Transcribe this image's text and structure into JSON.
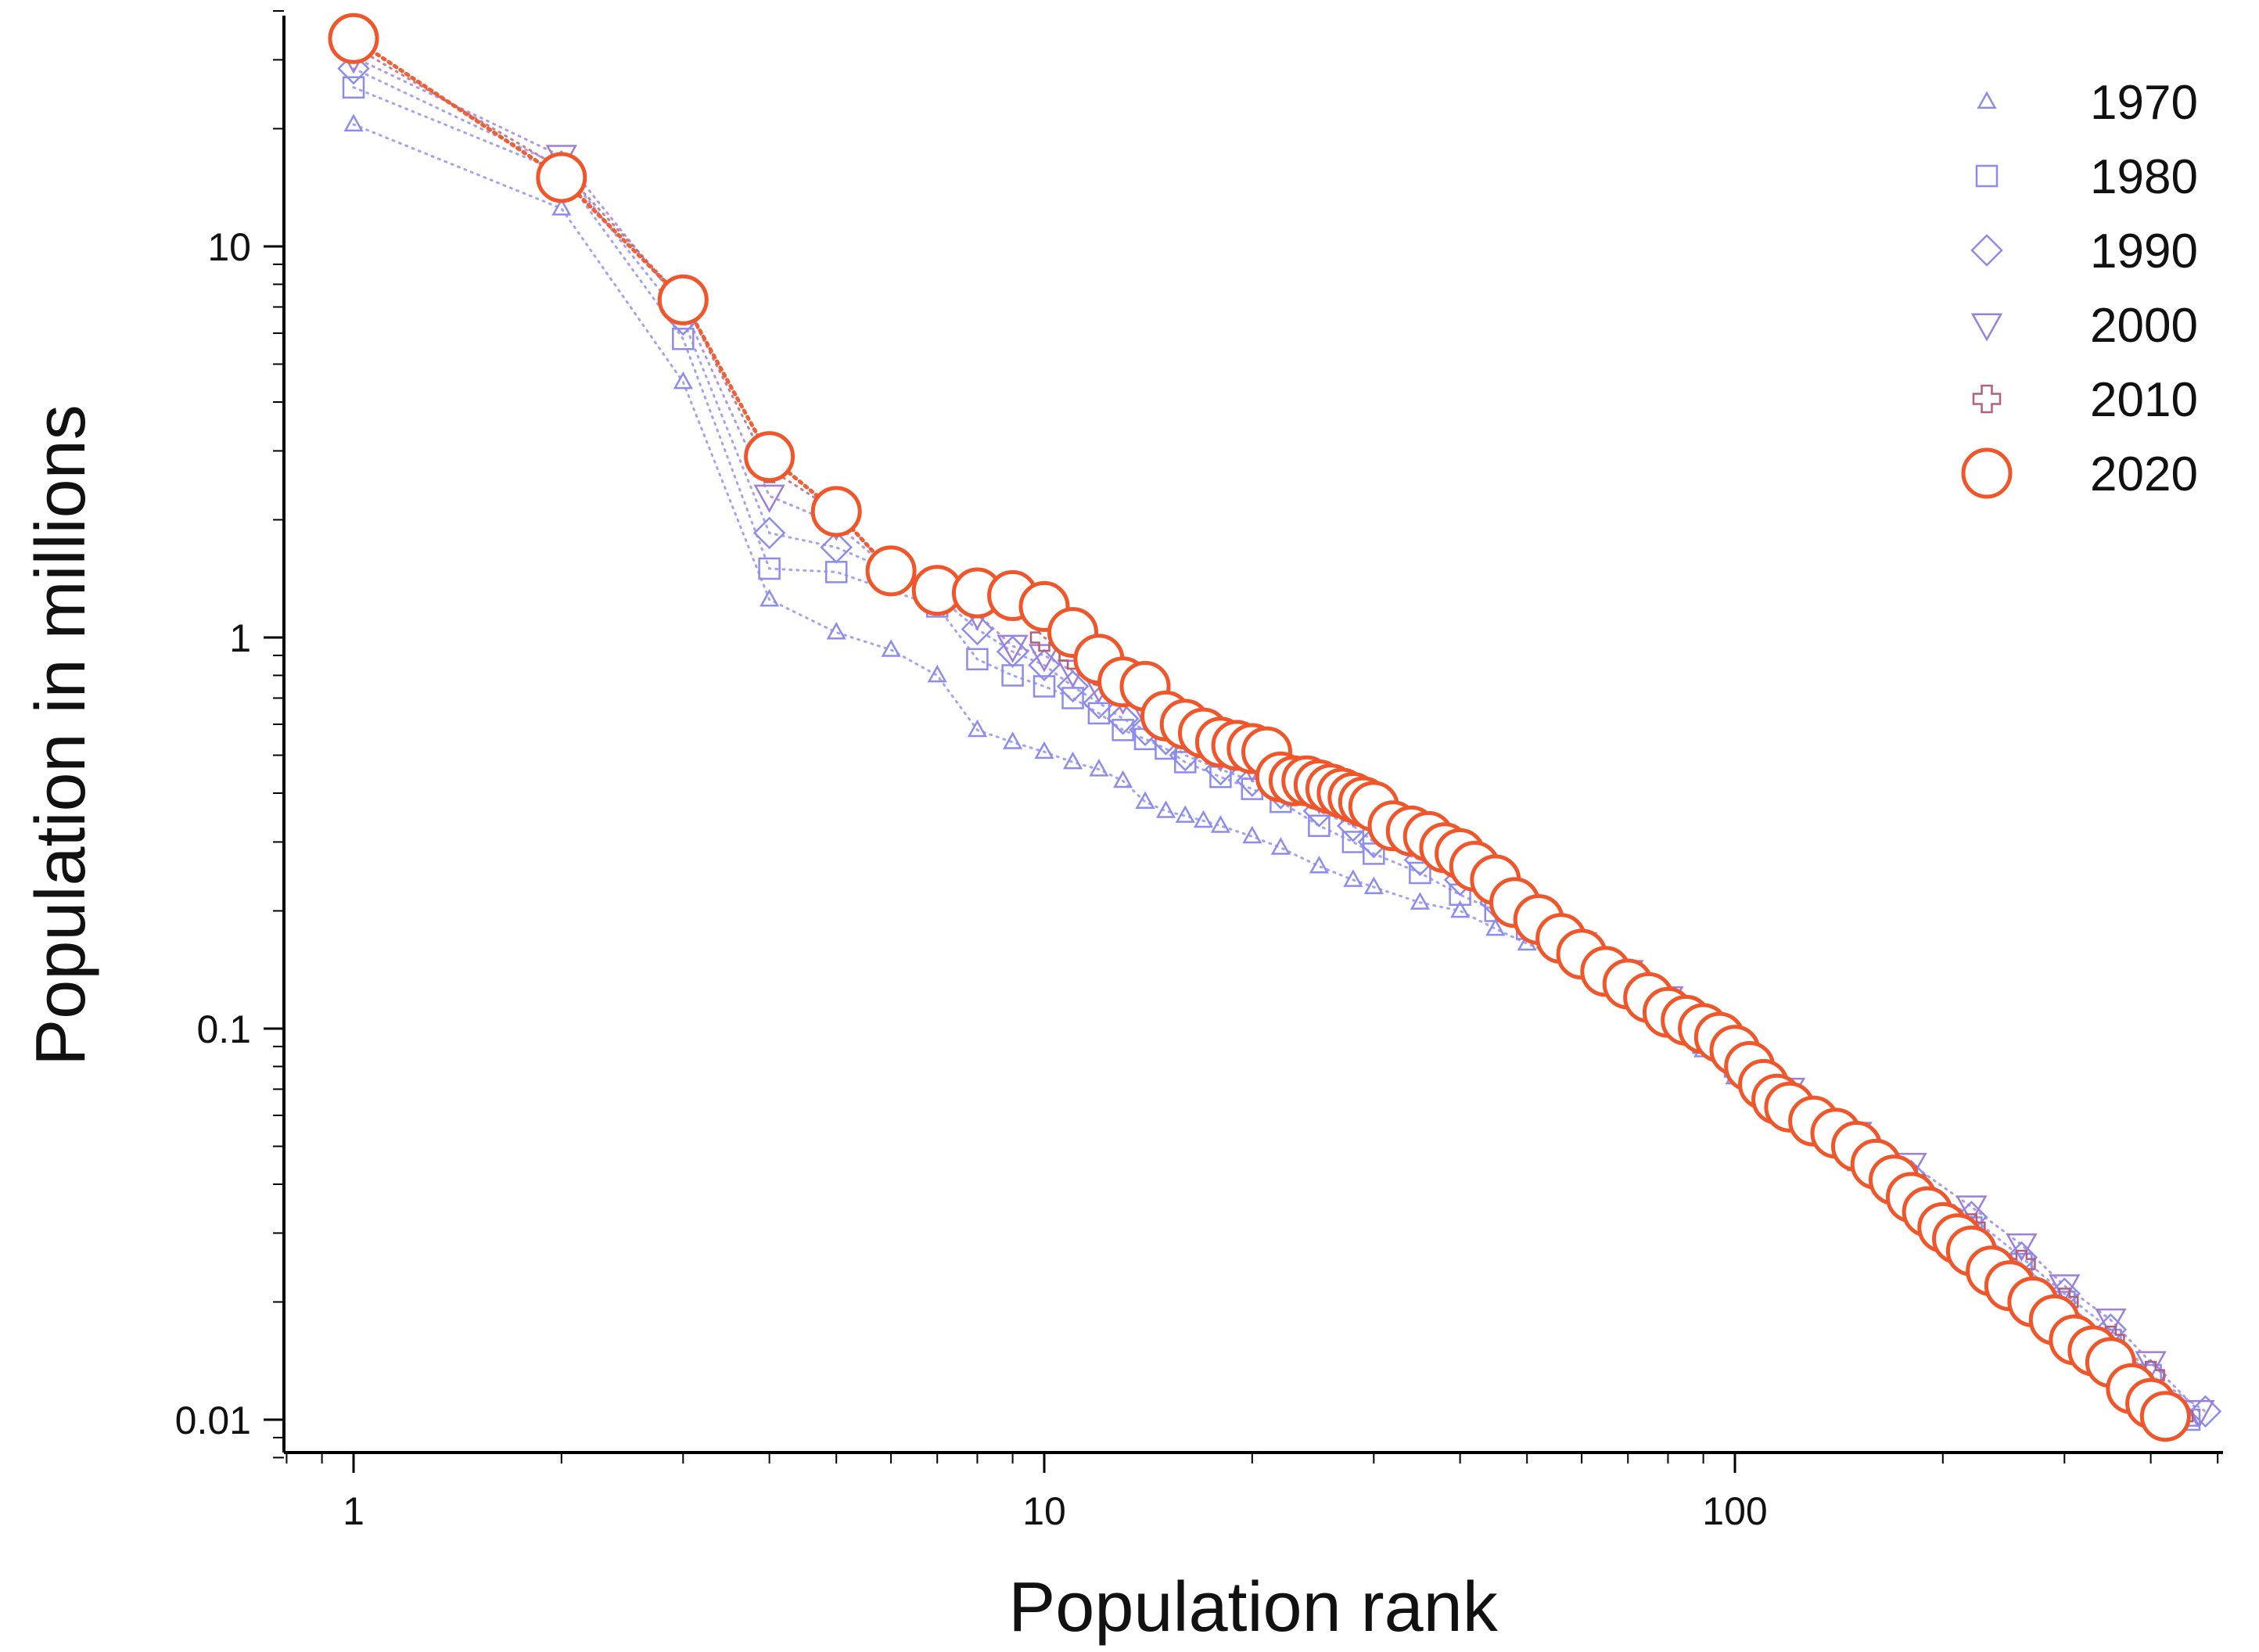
{
  "chart_data": {
    "type": "scatter",
    "title": "",
    "xlabel": "Population rank",
    "ylabel": "Population in millions",
    "x_scale": "log",
    "y_scale": "log",
    "xlim": [
      0.75,
      500
    ],
    "ylim": [
      0.008,
      45
    ],
    "x_ticks": [
      1,
      10,
      100
    ],
    "x_tick_labels": [
      "1",
      "10",
      "100"
    ],
    "y_ticks": [
      0.01,
      0.1,
      1,
      10
    ],
    "y_tick_labels": [
      "0.01",
      "0.1",
      "1",
      "10"
    ],
    "grid": false,
    "legend_position": "top-right",
    "series": [
      {
        "name": "1970",
        "marker": "triangle-up",
        "color": "#8c8cef",
        "points": [
          [
            1,
            20.5
          ],
          [
            2,
            12.5
          ],
          [
            3,
            4.5
          ],
          [
            4,
            1.25
          ],
          [
            5,
            1.03
          ],
          [
            6,
            0.93
          ],
          [
            7,
            0.8
          ],
          [
            8,
            0.58
          ],
          [
            9,
            0.54
          ],
          [
            10,
            0.51
          ],
          [
            11,
            0.48
          ],
          [
            12,
            0.46
          ],
          [
            13,
            0.43
          ],
          [
            14,
            0.38
          ],
          [
            15,
            0.36
          ],
          [
            16,
            0.35
          ],
          [
            17,
            0.34
          ],
          [
            18,
            0.33
          ],
          [
            20,
            0.31
          ],
          [
            22,
            0.29
          ],
          [
            25,
            0.26
          ],
          [
            28,
            0.24
          ],
          [
            30,
            0.23
          ],
          [
            35,
            0.21
          ],
          [
            40,
            0.2
          ],
          [
            45,
            0.18
          ],
          [
            50,
            0.165
          ],
          [
            60,
            0.145
          ],
          [
            70,
            0.125
          ],
          [
            80,
            0.105
          ],
          [
            90,
            0.088
          ],
          [
            100,
            0.075
          ],
          [
            120,
            0.058
          ],
          [
            150,
            0.045
          ],
          [
            180,
            0.037
          ],
          [
            220,
            0.029
          ],
          [
            260,
            0.023
          ],
          [
            300,
            0.019
          ],
          [
            350,
            0.015
          ],
          [
            400,
            0.0125
          ],
          [
            455,
            0.01
          ]
        ]
      },
      {
        "name": "1980",
        "marker": "square",
        "color": "#8c8cef",
        "points": [
          [
            1,
            25.5
          ],
          [
            2,
            15.5
          ],
          [
            3,
            5.8
          ],
          [
            4,
            1.5
          ],
          [
            5,
            1.47
          ],
          [
            7,
            1.2
          ],
          [
            8,
            0.88
          ],
          [
            9,
            0.8
          ],
          [
            10,
            0.75
          ],
          [
            11,
            0.7
          ],
          [
            12,
            0.64
          ],
          [
            13,
            0.58
          ],
          [
            14,
            0.55
          ],
          [
            15,
            0.52
          ],
          [
            16,
            0.48
          ],
          [
            18,
            0.44
          ],
          [
            20,
            0.41
          ],
          [
            22,
            0.38
          ],
          [
            25,
            0.33
          ],
          [
            28,
            0.3
          ],
          [
            30,
            0.28
          ],
          [
            35,
            0.25
          ],
          [
            40,
            0.22
          ],
          [
            45,
            0.2
          ],
          [
            50,
            0.18
          ],
          [
            60,
            0.155
          ],
          [
            70,
            0.13
          ],
          [
            80,
            0.11
          ],
          [
            90,
            0.092
          ],
          [
            100,
            0.08
          ],
          [
            120,
            0.062
          ],
          [
            150,
            0.048
          ],
          [
            180,
            0.039
          ],
          [
            220,
            0.031
          ],
          [
            260,
            0.025
          ],
          [
            300,
            0.02
          ],
          [
            350,
            0.016
          ],
          [
            400,
            0.013
          ],
          [
            455,
            0.01
          ]
        ]
      },
      {
        "name": "1990",
        "marker": "diamond",
        "color": "#8c8cef",
        "points": [
          [
            1,
            28.5
          ],
          [
            2,
            16
          ],
          [
            3,
            6.5
          ],
          [
            4,
            1.85
          ],
          [
            5,
            1.7
          ],
          [
            6,
            1.48
          ],
          [
            7,
            1.28
          ],
          [
            8,
            1.05
          ],
          [
            9,
            0.92
          ],
          [
            10,
            0.85
          ],
          [
            11,
            0.75
          ],
          [
            12,
            0.68
          ],
          [
            13,
            0.62
          ],
          [
            14,
            0.58
          ],
          [
            15,
            0.55
          ],
          [
            16,
            0.5
          ],
          [
            18,
            0.46
          ],
          [
            20,
            0.43
          ],
          [
            22,
            0.4
          ],
          [
            25,
            0.36
          ],
          [
            28,
            0.33
          ],
          [
            30,
            0.3
          ],
          [
            35,
            0.27
          ],
          [
            40,
            0.24
          ],
          [
            45,
            0.21
          ],
          [
            50,
            0.19
          ],
          [
            60,
            0.16
          ],
          [
            70,
            0.135
          ],
          [
            80,
            0.115
          ],
          [
            90,
            0.098
          ],
          [
            100,
            0.085
          ],
          [
            120,
            0.066
          ],
          [
            150,
            0.051
          ],
          [
            180,
            0.042
          ],
          [
            220,
            0.033
          ],
          [
            260,
            0.026
          ],
          [
            300,
            0.021
          ],
          [
            350,
            0.017
          ],
          [
            400,
            0.013
          ],
          [
            480,
            0.0105
          ]
        ]
      },
      {
        "name": "2000",
        "marker": "triangle-down",
        "color": "#9b7fdb",
        "points": [
          [
            1,
            30.5
          ],
          [
            2,
            17
          ],
          [
            3,
            7
          ],
          [
            4,
            2.3
          ],
          [
            5,
            1.95
          ],
          [
            6,
            1.48
          ],
          [
            7,
            1.35
          ],
          [
            8,
            1.15
          ],
          [
            9,
            0.95
          ],
          [
            10,
            0.9
          ],
          [
            11,
            0.82
          ],
          [
            12,
            0.75
          ],
          [
            13,
            0.7
          ],
          [
            14,
            0.65
          ],
          [
            15,
            0.6
          ],
          [
            16,
            0.56
          ],
          [
            18,
            0.5
          ],
          [
            20,
            0.47
          ],
          [
            22,
            0.43
          ],
          [
            25,
            0.39
          ],
          [
            28,
            0.36
          ],
          [
            30,
            0.33
          ],
          [
            35,
            0.3
          ],
          [
            40,
            0.27
          ],
          [
            45,
            0.23
          ],
          [
            50,
            0.2
          ],
          [
            60,
            0.165
          ],
          [
            70,
            0.14
          ],
          [
            80,
            0.12
          ],
          [
            90,
            0.103
          ],
          [
            100,
            0.09
          ],
          [
            120,
            0.07
          ],
          [
            150,
            0.054
          ],
          [
            180,
            0.045
          ],
          [
            220,
            0.035
          ],
          [
            260,
            0.028
          ],
          [
            300,
            0.022
          ],
          [
            350,
            0.018
          ],
          [
            400,
            0.014
          ],
          [
            470,
            0.0105
          ]
        ]
      },
      {
        "name": "2010",
        "marker": "plus",
        "color": "#b0607a",
        "points": [
          [
            1,
            32.5
          ],
          [
            2,
            15.8
          ],
          [
            3,
            7.3
          ],
          [
            4,
            2.7
          ],
          [
            5,
            2.1
          ],
          [
            6,
            1.47
          ],
          [
            7,
            1.38
          ],
          [
            8,
            1.22
          ],
          [
            9,
            1.2
          ],
          [
            10,
            1.0
          ],
          [
            11,
            0.9
          ],
          [
            12,
            0.82
          ],
          [
            13,
            0.77
          ],
          [
            14,
            0.74
          ],
          [
            15,
            0.66
          ],
          [
            16,
            0.61
          ],
          [
            18,
            0.55
          ],
          [
            20,
            0.53
          ],
          [
            22,
            0.48
          ],
          [
            25,
            0.42
          ],
          [
            28,
            0.39
          ],
          [
            30,
            0.36
          ],
          [
            35,
            0.32
          ],
          [
            40,
            0.28
          ],
          [
            45,
            0.24
          ],
          [
            50,
            0.2
          ],
          [
            60,
            0.16
          ],
          [
            70,
            0.135
          ],
          [
            80,
            0.115
          ],
          [
            90,
            0.1
          ],
          [
            100,
            0.088
          ],
          [
            120,
            0.067
          ],
          [
            150,
            0.052
          ],
          [
            180,
            0.041
          ],
          [
            220,
            0.031
          ],
          [
            260,
            0.025
          ],
          [
            300,
            0.02
          ],
          [
            350,
            0.016
          ],
          [
            400,
            0.013
          ],
          [
            440,
            0.0102
          ]
        ]
      },
      {
        "name": "2020",
        "marker": "circle",
        "color": "#f0562a",
        "points": [
          [
            1,
            34
          ],
          [
            2,
            15
          ],
          [
            3,
            7.3
          ],
          [
            4,
            2.9
          ],
          [
            5,
            2.1
          ],
          [
            6,
            1.48
          ],
          [
            7,
            1.32
          ],
          [
            8,
            1.3
          ],
          [
            9,
            1.28
          ],
          [
            10,
            1.2
          ],
          [
            11,
            1.03
          ],
          [
            12,
            0.88
          ],
          [
            13,
            0.77
          ],
          [
            14,
            0.75
          ],
          [
            15,
            0.63
          ],
          [
            16,
            0.6
          ],
          [
            17,
            0.57
          ],
          [
            18,
            0.54
          ],
          [
            19,
            0.53
          ],
          [
            20,
            0.52
          ],
          [
            21,
            0.51
          ],
          [
            22,
            0.44
          ],
          [
            23,
            0.43
          ],
          [
            24,
            0.43
          ],
          [
            25,
            0.42
          ],
          [
            26,
            0.41
          ],
          [
            27,
            0.4
          ],
          [
            28,
            0.39
          ],
          [
            29,
            0.38
          ],
          [
            30,
            0.37
          ],
          [
            32,
            0.33
          ],
          [
            34,
            0.32
          ],
          [
            36,
            0.31
          ],
          [
            38,
            0.29
          ],
          [
            40,
            0.28
          ],
          [
            42,
            0.26
          ],
          [
            45,
            0.24
          ],
          [
            48,
            0.21
          ],
          [
            52,
            0.19
          ],
          [
            56,
            0.17
          ],
          [
            60,
            0.155
          ],
          [
            65,
            0.14
          ],
          [
            70,
            0.13
          ],
          [
            75,
            0.12
          ],
          [
            80,
            0.11
          ],
          [
            85,
            0.105
          ],
          [
            90,
            0.1
          ],
          [
            95,
            0.095
          ],
          [
            100,
            0.088
          ],
          [
            105,
            0.08
          ],
          [
            110,
            0.072
          ],
          [
            115,
            0.066
          ],
          [
            120,
            0.063
          ],
          [
            130,
            0.058
          ],
          [
            140,
            0.054
          ],
          [
            150,
            0.05
          ],
          [
            160,
            0.045
          ],
          [
            170,
            0.041
          ],
          [
            180,
            0.037
          ],
          [
            190,
            0.034
          ],
          [
            200,
            0.031
          ],
          [
            210,
            0.029
          ],
          [
            220,
            0.027
          ],
          [
            235,
            0.024
          ],
          [
            250,
            0.022
          ],
          [
            270,
            0.02
          ],
          [
            290,
            0.018
          ],
          [
            310,
            0.016
          ],
          [
            330,
            0.015
          ],
          [
            350,
            0.014
          ],
          [
            375,
            0.012
          ],
          [
            400,
            0.011
          ],
          [
            420,
            0.0102
          ]
        ]
      }
    ]
  }
}
